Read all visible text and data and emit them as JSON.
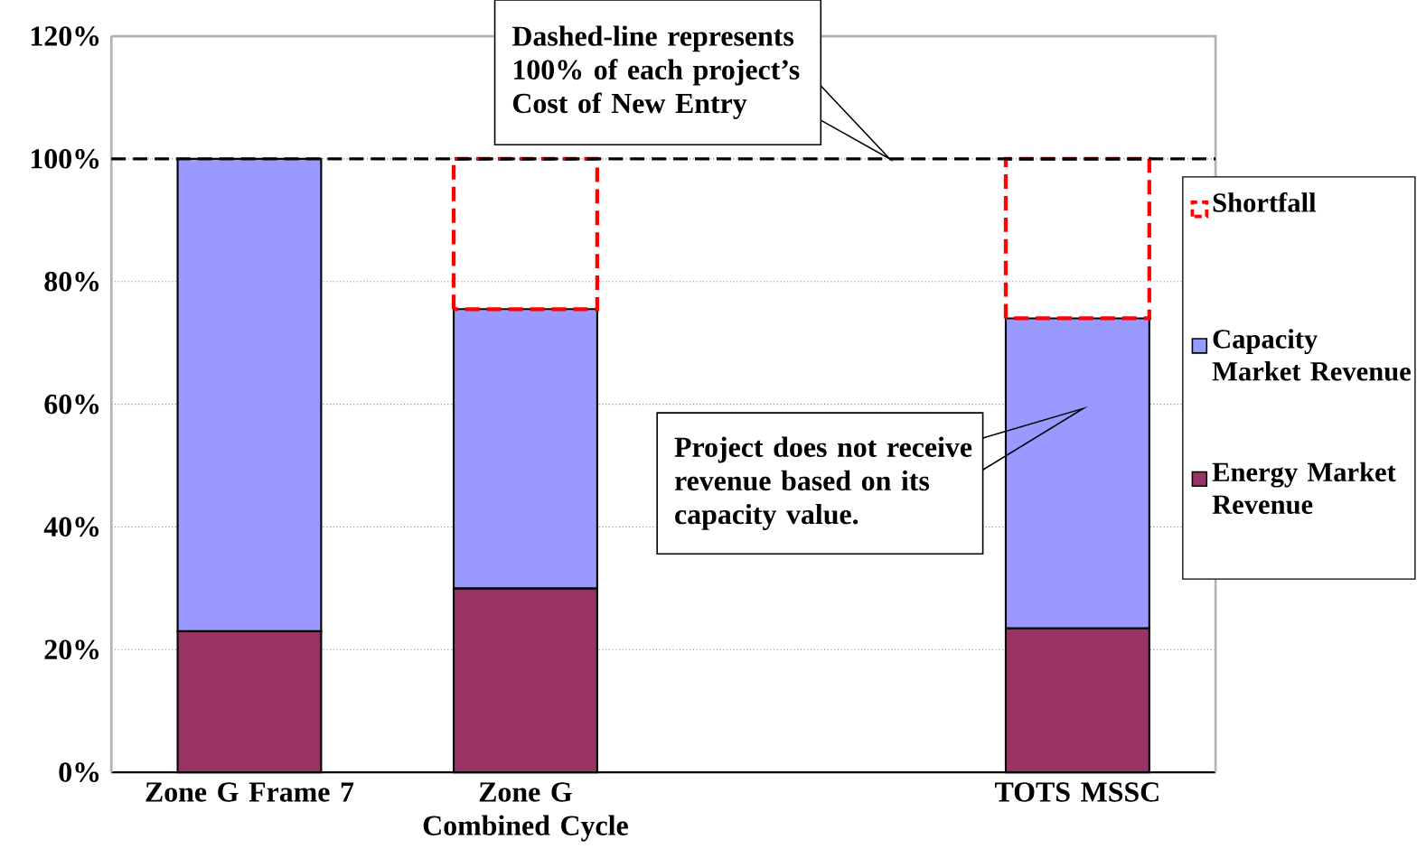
{
  "chart_data": {
    "type": "bar",
    "stacked": true,
    "categories": [
      "Zone G Frame 7",
      "Zone G Combined Cycle",
      null,
      "TOTS MSSC"
    ],
    "series": [
      {
        "name": "Energy Market Revenue",
        "color": "#993366",
        "values": [
          23,
          30,
          null,
          23.5
        ]
      },
      {
        "name": "Capacity Market Revenue",
        "color": "#9999ff",
        "values": [
          77,
          45.5,
          null,
          50.5
        ]
      },
      {
        "name": "Shortfall",
        "color": "#ff0000",
        "line_style": "dashed",
        "values": [
          null,
          24.5,
          null,
          26
        ]
      }
    ],
    "ylim": [
      0,
      120
    ],
    "yticks": [
      {
        "value": 0,
        "label": "0%"
      },
      {
        "value": 20,
        "label": "20%"
      },
      {
        "value": 40,
        "label": "40%"
      },
      {
        "value": 60,
        "label": "60%"
      },
      {
        "value": 80,
        "label": "80%"
      },
      {
        "value": 100,
        "label": "100%"
      },
      {
        "value": 120,
        "label": "120%"
      }
    ],
    "grid": "y",
    "legend": "right",
    "ref_lines": [
      {
        "axis": "y",
        "value": 100,
        "color": "#000000",
        "line_style": "dashed"
      }
    ],
    "annotations": [
      {
        "text": "Dashed-line represents 100% of each project’s Cost of New Entry",
        "y": 100
      },
      "Project does not receive revenue based on its capacity value."
    ]
  }
}
